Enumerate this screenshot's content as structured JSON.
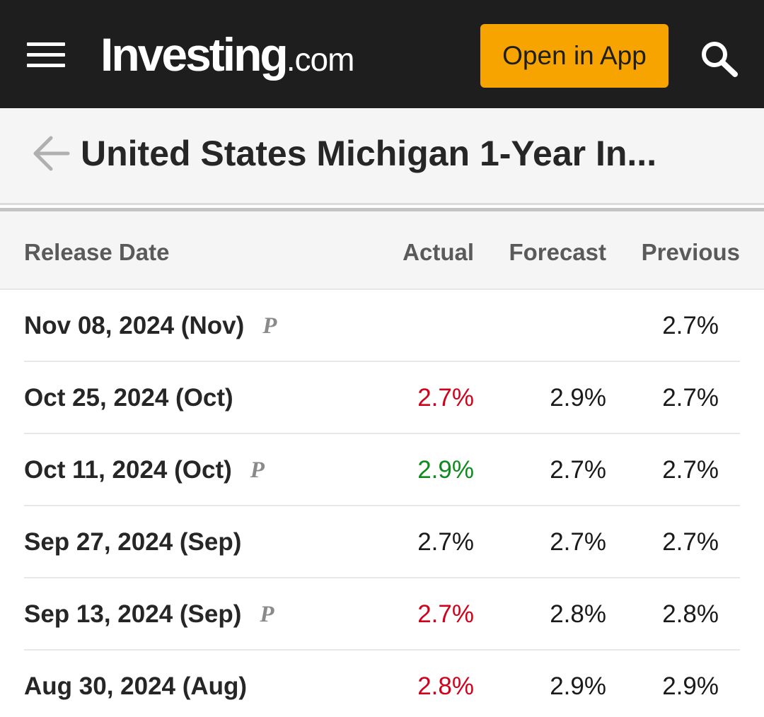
{
  "header": {
    "logo_main": "Investing",
    "logo_suffix": ".com",
    "open_app_label": "Open in App"
  },
  "page": {
    "title": "United States Michigan 1-Year In..."
  },
  "table": {
    "columns": [
      "Release Date",
      "Actual",
      "Forecast",
      "Previous"
    ],
    "rows": [
      {
        "date": "Nov 08, 2024 (Nov)",
        "prelim": "P",
        "actual": "",
        "actual_status": "none",
        "forecast": "",
        "previous": "2.7%"
      },
      {
        "date": "Oct 25, 2024 (Oct)",
        "prelim": "",
        "actual": "2.7%",
        "actual_status": "below",
        "forecast": "2.9%",
        "previous": "2.7%"
      },
      {
        "date": "Oct 11, 2024 (Oct)",
        "prelim": "P",
        "actual": "2.9%",
        "actual_status": "above",
        "forecast": "2.7%",
        "previous": "2.7%"
      },
      {
        "date": "Sep 27, 2024 (Sep)",
        "prelim": "",
        "actual": "2.7%",
        "actual_status": "neutral",
        "forecast": "2.7%",
        "previous": "2.7%"
      },
      {
        "date": "Sep 13, 2024 (Sep)",
        "prelim": "P",
        "actual": "2.7%",
        "actual_status": "below",
        "forecast": "2.8%",
        "previous": "2.8%"
      },
      {
        "date": "Aug 30, 2024 (Aug)",
        "prelim": "",
        "actual": "2.8%",
        "actual_status": "below",
        "forecast": "2.9%",
        "previous": "2.9%"
      }
    ]
  },
  "icons": {
    "menu": "hamburger-menu-icon",
    "search": "search-icon",
    "back": "back-arrow-icon"
  },
  "colors": {
    "header_bg": "#1e1e1e",
    "button_bg": "#f7a400",
    "negative": "#d0021b",
    "positive": "#0e8a1f"
  }
}
